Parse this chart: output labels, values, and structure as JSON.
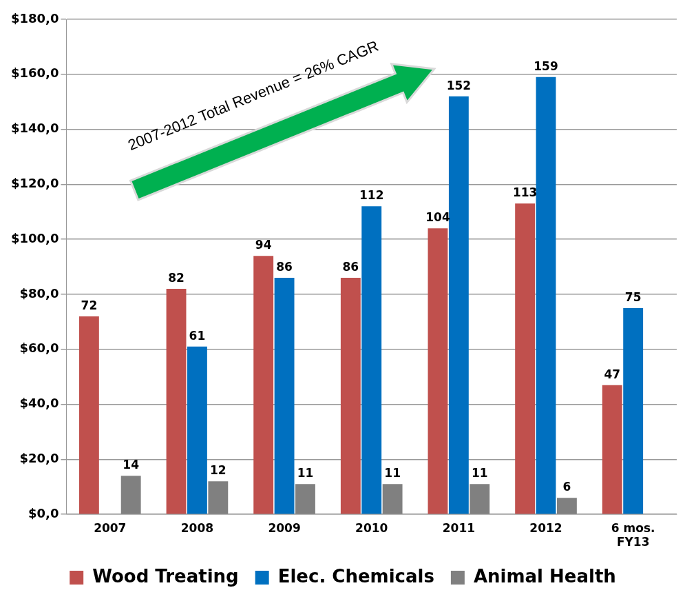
{
  "chart_data": {
    "type": "bar",
    "categories": [
      "2007",
      "2008",
      "2009",
      "2010",
      "2011",
      "2012",
      "6 mos. FY13"
    ],
    "series": [
      {
        "name": "Wood Treating",
        "color": "#c0504d",
        "values": [
          72,
          82,
          94,
          86,
          104,
          113,
          47
        ]
      },
      {
        "name": "Elec. Chemicals",
        "color": "#0070c0",
        "values": [
          null,
          61,
          86,
          112,
          152,
          159,
          75
        ]
      },
      {
        "name": "Animal Health",
        "color": "#808080",
        "values": [
          14,
          12,
          11,
          11,
          11,
          6,
          null
        ]
      }
    ],
    "ylim": [
      0,
      180
    ],
    "yticks": [
      {
        "value": 0,
        "label": "$0,0"
      },
      {
        "value": 20,
        "label": "$20,0"
      },
      {
        "value": 40,
        "label": "$40,0"
      },
      {
        "value": 60,
        "label": "$60,0"
      },
      {
        "value": 80,
        "label": "$80,0"
      },
      {
        "value": 100,
        "label": "$100,0"
      },
      {
        "value": 120,
        "label": "$120,0"
      },
      {
        "value": 140,
        "label": "$140,0"
      },
      {
        "value": 160,
        "label": "$160,0"
      },
      {
        "value": 180,
        "label": "$180,0"
      }
    ],
    "grid": "y",
    "legend": "bottom",
    "data_labels": true,
    "annotations": [
      "2007-2012 Total Revenue = 26% CAGR"
    ]
  }
}
